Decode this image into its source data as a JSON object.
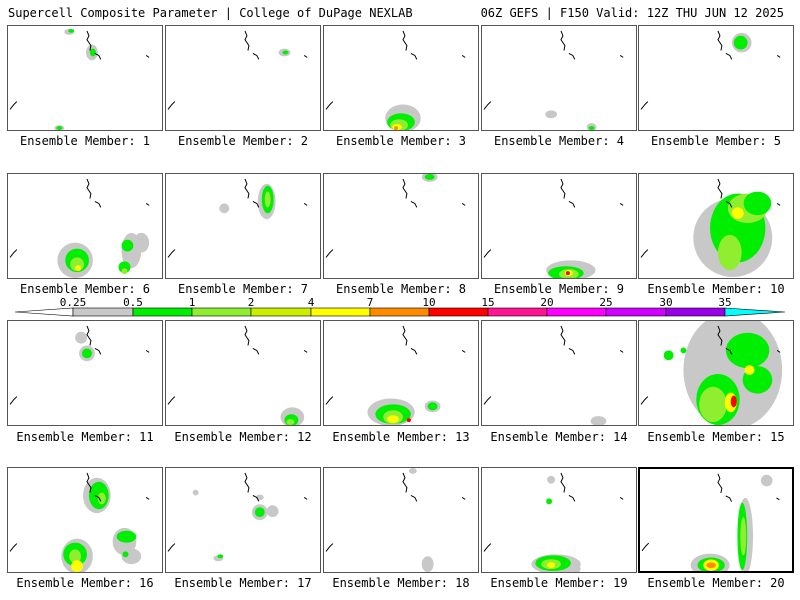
{
  "header": {
    "left_title": "Supercell Composite Parameter | College of DuPage NEXLAB",
    "right_title": "06Z GEFS | F150 Valid: 12Z THU JUN 12 2025"
  },
  "colorbar": {
    "labels": [
      "0.25",
      "0.5",
      "1",
      "2",
      "4",
      "7",
      "10",
      "15",
      "20",
      "25",
      "30",
      "35"
    ],
    "colors": [
      "#c8c8c8",
      "#00ee00",
      "#90ee30",
      "#ccee00",
      "#ffff00",
      "#ff8c00",
      "#ff0000",
      "#ff1493",
      "#ff00ff",
      "#d000ff",
      "#9a00e8",
      "#c060ff",
      "#00ffff"
    ]
  },
  "panels": [
    {
      "label": "Ensemble Member: 1",
      "selected": false
    },
    {
      "label": "Ensemble Member: 2",
      "selected": false
    },
    {
      "label": "Ensemble Member: 3",
      "selected": false
    },
    {
      "label": "Ensemble Member: 4",
      "selected": false
    },
    {
      "label": "Ensemble Member: 5",
      "selected": false
    },
    {
      "label": "Ensemble Member: 6",
      "selected": false
    },
    {
      "label": "Ensemble Member: 7",
      "selected": false
    },
    {
      "label": "Ensemble Member: 8",
      "selected": false
    },
    {
      "label": "Ensemble Member: 9",
      "selected": false
    },
    {
      "label": "Ensemble Member: 10",
      "selected": false
    },
    {
      "label": "Ensemble Member: 11",
      "selected": false
    },
    {
      "label": "Ensemble Member: 12",
      "selected": false
    },
    {
      "label": "Ensemble Member: 13",
      "selected": false
    },
    {
      "label": "Ensemble Member: 14",
      "selected": false
    },
    {
      "label": "Ensemble Member: 15",
      "selected": false
    },
    {
      "label": "Ensemble Member: 16",
      "selected": false
    },
    {
      "label": "Ensemble Member: 17",
      "selected": false
    },
    {
      "label": "Ensemble Member: 18",
      "selected": false
    },
    {
      "label": "Ensemble Member: 19",
      "selected": false
    },
    {
      "label": "Ensemble Member: 20",
      "selected": true
    }
  ]
}
